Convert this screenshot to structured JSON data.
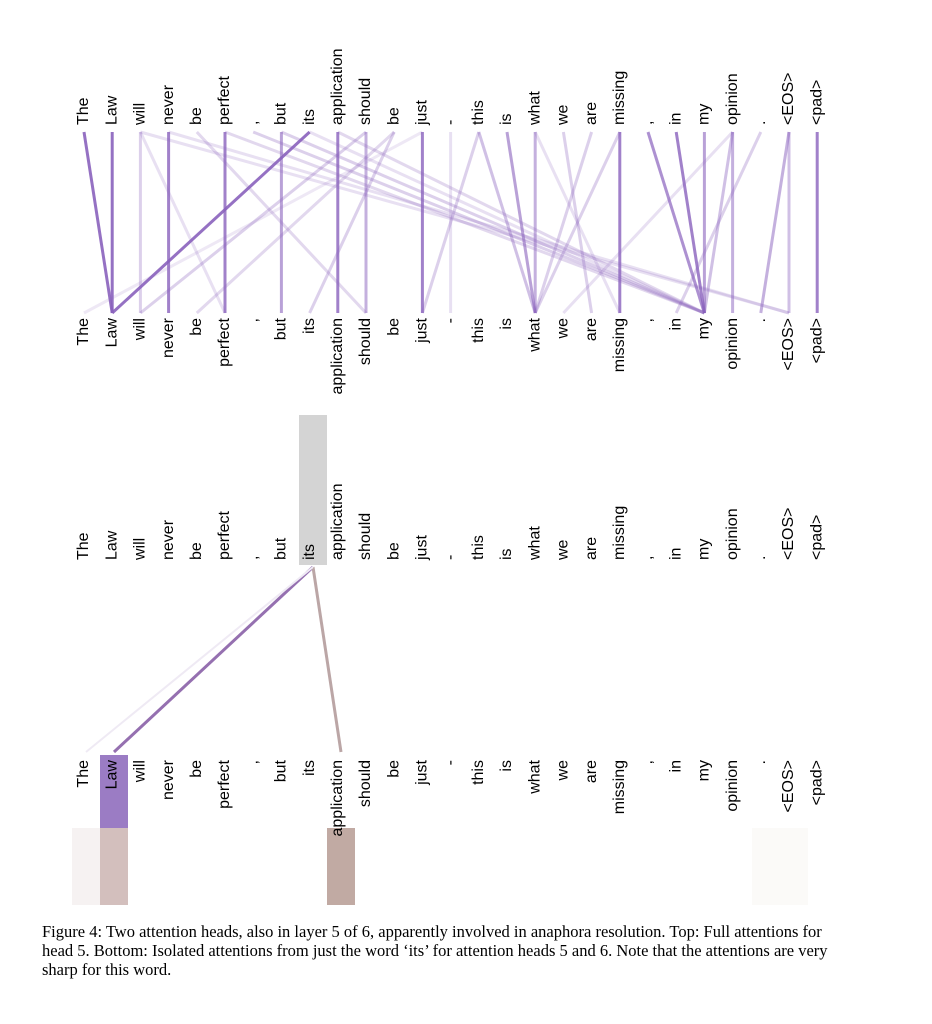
{
  "tokens": [
    "The",
    "Law",
    "will",
    "never",
    "be",
    "perfect",
    ",",
    "but",
    "its",
    "application",
    "should",
    "be",
    "just",
    "-",
    "this",
    "is",
    "what",
    "we",
    "are",
    "missing",
    ",",
    "in",
    "my",
    "opinion",
    ".",
    "<EOS>",
    "<pad>"
  ],
  "caption": "Figure 4: Two attention heads, also in layer 5 of 6, apparently involved in anaphora resolution. Top: Full attentions for head 5. Bottom: Isolated attentions from just the word ‘its’ for attention heads 5 and 6. Note that the attentions are very sharp for this word."
}
